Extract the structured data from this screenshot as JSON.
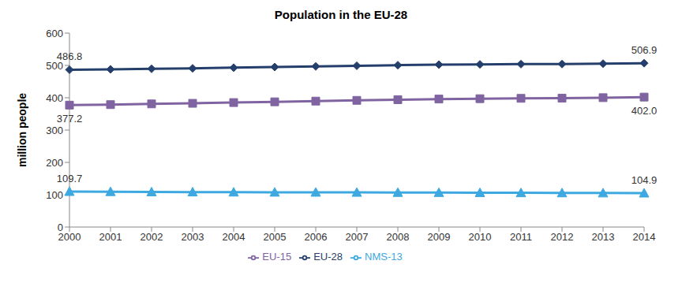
{
  "chart_data": {
    "type": "line",
    "title": "Population in the EU-28",
    "y_label": "million people",
    "categories": [
      "2000",
      "2001",
      "2002",
      "2003",
      "2004",
      "2005",
      "2006",
      "2007",
      "2008",
      "2009",
      "2010",
      "2011",
      "2012",
      "2013",
      "2014"
    ],
    "ylim": [
      0,
      600
    ],
    "yticks": [
      0,
      100,
      200,
      300,
      400,
      500,
      600
    ],
    "grid": false,
    "legend": "bottom",
    "series": [
      {
        "name": "EU-28",
        "color": "#243F6B",
        "marker": "diamond",
        "values": [
          486.8,
          488.0,
          489.5,
          491.0,
          493.0,
          495.0,
          497.0,
          499.0,
          500.8,
          502.5,
          503.3,
          504.0,
          504.2,
          505.5,
          506.9
        ],
        "value_labels": [
          "486.8",
          null,
          null,
          null,
          null,
          null,
          null,
          null,
          null,
          null,
          null,
          null,
          null,
          null,
          "506.9"
        ]
      },
      {
        "name": "EU-15",
        "color": "#8064A2",
        "marker": "square",
        "values": [
          377.2,
          378.7,
          381.0,
          382.8,
          385.1,
          387.4,
          389.6,
          391.9,
          394.0,
          396.0,
          397.1,
          398.2,
          398.7,
          400.3,
          402.0
        ],
        "value_labels": [
          "377.2",
          null,
          null,
          null,
          null,
          null,
          null,
          null,
          null,
          null,
          null,
          null,
          null,
          null,
          "402.0"
        ]
      },
      {
        "name": "NMS-13",
        "color": "#3DA9E0",
        "marker": "triangle",
        "values": [
          109.7,
          109.3,
          108.5,
          108.2,
          107.9,
          107.6,
          107.4,
          107.1,
          106.8,
          106.5,
          106.2,
          105.8,
          105.5,
          105.2,
          104.9
        ],
        "value_labels": [
          "109.7",
          null,
          null,
          null,
          null,
          null,
          null,
          null,
          null,
          null,
          null,
          null,
          null,
          null,
          "104.9"
        ]
      }
    ]
  }
}
